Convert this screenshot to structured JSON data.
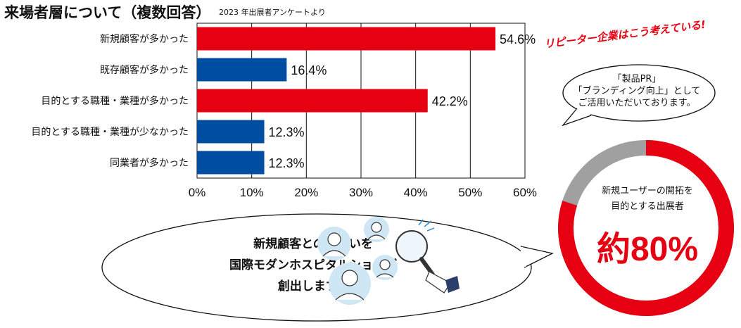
{
  "header": {
    "title": "来場者層について（複数回答）",
    "subtitle": "2023 年出展者アンケートより"
  },
  "chart_data": {
    "type": "bar",
    "orientation": "horizontal",
    "categories": [
      "新規顧客が多かった",
      "既存顧客が多かった",
      "目的とする職種・業種が多かった",
      "目的とする職種・業種が少なかった",
      "同業者が多かった"
    ],
    "values": [
      54.6,
      16.4,
      42.2,
      12.3,
      12.3
    ],
    "value_labels": [
      "54.6%",
      "16.4%",
      "42.2%",
      "12.3%",
      "12.3%"
    ],
    "bar_colors": [
      "#e60012",
      "#004ea2",
      "#e60012",
      "#004ea2",
      "#004ea2"
    ],
    "xlim": [
      0,
      60
    ],
    "xticks": [
      "0%",
      "10%",
      "20%",
      "30%",
      "40%",
      "50%",
      "60%"
    ],
    "grid": true
  },
  "callout_top": {
    "tagline": "リピーター企業はこう考えている!",
    "lines": [
      "「製品PR」",
      "「ブランディング向上」としてご活用いただいております。"
    ]
  },
  "donut": {
    "label_line1": "新規ユーザーの開拓を",
    "label_line2": "目的とする出展者",
    "value_text": "約80%",
    "fraction": 0.8,
    "color_main": "#e60012",
    "color_rest": "#a0a0a0"
  },
  "callout_bottom": {
    "line1": "新規顧客との出会いを",
    "line2": "国際モダンホスピタルショウが",
    "line3": "創出します。"
  },
  "illustration": {
    "icons": [
      "person-icon",
      "person-icon",
      "person-icon",
      "person-icon",
      "magnifier-icon"
    ]
  }
}
